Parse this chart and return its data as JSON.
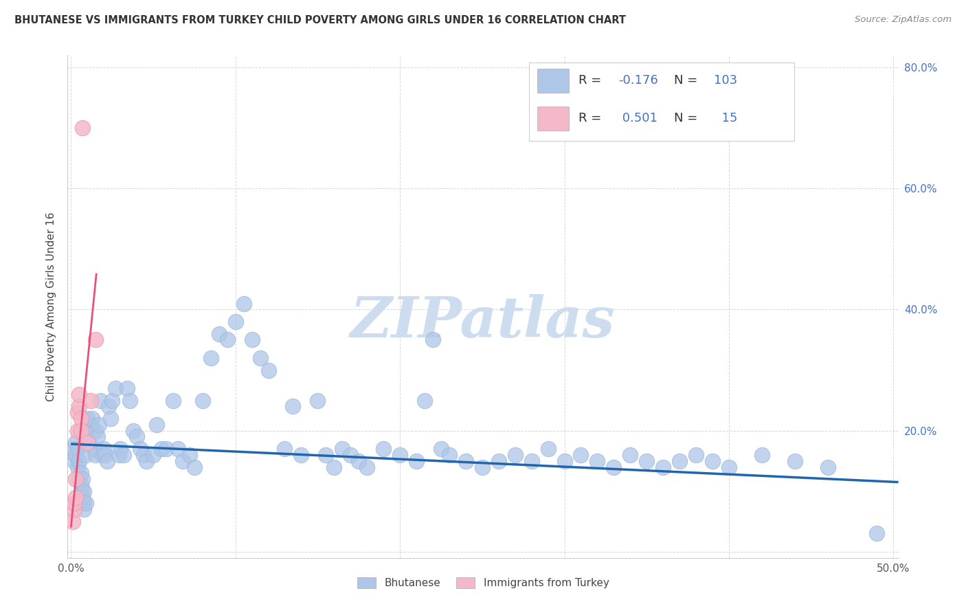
{
  "title": "BHUTANESE VS IMMIGRANTS FROM TURKEY CHILD POVERTY AMONG GIRLS UNDER 16 CORRELATION CHART",
  "source": "Source: ZipAtlas.com",
  "ylabel": "Child Poverty Among Girls Under 16",
  "xlim": [
    -0.002,
    0.503
  ],
  "ylim": [
    -0.01,
    0.82
  ],
  "xticks": [
    0.0,
    0.1,
    0.2,
    0.3,
    0.4,
    0.5
  ],
  "xticklabels": [
    "0.0%",
    "",
    "",
    "",
    "",
    "50.0%"
  ],
  "yticks": [
    0.0,
    0.2,
    0.4,
    0.6,
    0.8
  ],
  "yticklabels": [
    "",
    "20.0%",
    "40.0%",
    "60.0%",
    "80.0%"
  ],
  "bhutanese_color": "#aec6e8",
  "turkey_color": "#f4b8c8",
  "trendline_bhutanese_color": "#2166ac",
  "trendline_turkey_color": "#e8507a",
  "legend_color_blue": "#4472c4",
  "watermark": "ZIPatlas",
  "watermark_color": "#cddcef",
  "bhutanese_x": [
    0.001,
    0.002,
    0.003,
    0.003,
    0.004,
    0.004,
    0.005,
    0.005,
    0.006,
    0.006,
    0.007,
    0.007,
    0.007,
    0.008,
    0.008,
    0.008,
    0.009,
    0.009,
    0.01,
    0.01,
    0.011,
    0.012,
    0.013,
    0.014,
    0.015,
    0.015,
    0.016,
    0.017,
    0.018,
    0.019,
    0.02,
    0.021,
    0.022,
    0.023,
    0.024,
    0.025,
    0.027,
    0.029,
    0.03,
    0.032,
    0.034,
    0.036,
    0.038,
    0.04,
    0.042,
    0.044,
    0.046,
    0.05,
    0.052,
    0.055,
    0.058,
    0.062,
    0.065,
    0.068,
    0.072,
    0.075,
    0.08,
    0.085,
    0.09,
    0.095,
    0.1,
    0.105,
    0.11,
    0.115,
    0.12,
    0.13,
    0.135,
    0.14,
    0.15,
    0.155,
    0.16,
    0.165,
    0.17,
    0.175,
    0.18,
    0.19,
    0.2,
    0.21,
    0.215,
    0.22,
    0.225,
    0.23,
    0.24,
    0.25,
    0.26,
    0.27,
    0.28,
    0.29,
    0.3,
    0.31,
    0.32,
    0.33,
    0.34,
    0.35,
    0.36,
    0.37,
    0.38,
    0.39,
    0.4,
    0.42,
    0.44,
    0.46,
    0.49
  ],
  "bhutanese_y": [
    0.17,
    0.15,
    0.18,
    0.16,
    0.17,
    0.14,
    0.15,
    0.12,
    0.13,
    0.11,
    0.1,
    0.09,
    0.12,
    0.08,
    0.1,
    0.07,
    0.08,
    0.16,
    0.2,
    0.22,
    0.18,
    0.21,
    0.22,
    0.17,
    0.16,
    0.2,
    0.19,
    0.21,
    0.25,
    0.16,
    0.17,
    0.16,
    0.15,
    0.24,
    0.22,
    0.25,
    0.27,
    0.16,
    0.17,
    0.16,
    0.27,
    0.25,
    0.2,
    0.19,
    0.17,
    0.16,
    0.15,
    0.16,
    0.21,
    0.17,
    0.17,
    0.25,
    0.17,
    0.15,
    0.16,
    0.14,
    0.25,
    0.32,
    0.36,
    0.35,
    0.38,
    0.41,
    0.35,
    0.32,
    0.3,
    0.17,
    0.24,
    0.16,
    0.25,
    0.16,
    0.14,
    0.17,
    0.16,
    0.15,
    0.14,
    0.17,
    0.16,
    0.15,
    0.25,
    0.35,
    0.17,
    0.16,
    0.15,
    0.14,
    0.15,
    0.16,
    0.15,
    0.17,
    0.15,
    0.16,
    0.15,
    0.14,
    0.16,
    0.15,
    0.14,
    0.15,
    0.16,
    0.15,
    0.14,
    0.16,
    0.15,
    0.14,
    0.03
  ],
  "turkey_x": [
    0.001,
    0.002,
    0.002,
    0.003,
    0.003,
    0.004,
    0.004,
    0.005,
    0.005,
    0.006,
    0.006,
    0.007,
    0.01,
    0.012,
    0.015
  ],
  "turkey_y": [
    0.05,
    0.07,
    0.08,
    0.09,
    0.12,
    0.2,
    0.23,
    0.24,
    0.26,
    0.22,
    0.2,
    0.7,
    0.18,
    0.25,
    0.35
  ],
  "bhutanese_trendline_x": [
    0.0,
    0.503
  ],
  "bhutanese_trendline_y": [
    0.178,
    0.115
  ],
  "turkey_trendline_x": [
    0.0,
    0.0155
  ],
  "turkey_trendline_y": [
    0.04,
    0.46
  ],
  "legend_R_bhutanese": "-0.176",
  "legend_N_bhutanese": "103",
  "legend_R_turkey": "0.501",
  "legend_N_turkey": "15"
}
